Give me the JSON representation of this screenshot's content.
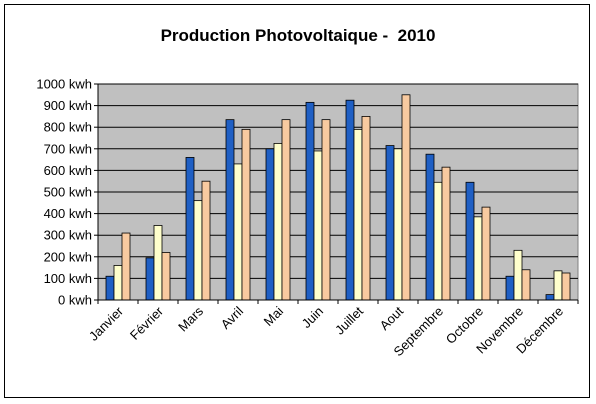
{
  "chart_data": {
    "type": "bar",
    "title": "Production Photovoltaique -  2010",
    "categories": [
      "Janvier",
      "Février",
      "Mars",
      "Avril",
      "Mai",
      "Juin",
      "Juillet",
      "Aout",
      "Septembre",
      "Octobre",
      "Novembre",
      "Décembre"
    ],
    "series": [
      {
        "values": [
          110,
          195,
          660,
          835,
          700,
          915,
          925,
          715,
          675,
          545,
          110,
          25
        ],
        "color": "#1f5fc4"
      },
      {
        "values": [
          160,
          345,
          460,
          630,
          725,
          690,
          790,
          700,
          545,
          385,
          230,
          135
        ],
        "color": "#ffffcc"
      },
      {
        "values": [
          310,
          220,
          550,
          790,
          835,
          835,
          850,
          950,
          615,
          430,
          140,
          125
        ],
        "color": "#f8caa0"
      }
    ],
    "ylim": [
      0,
      1000
    ],
    "yticks": [
      "0 kwh",
      "100 kwh",
      "200 kwh",
      "300 kwh",
      "400 kwh",
      "500 kwh",
      "600 kwh",
      "700 kwh",
      "800 kwh",
      "900 kwh",
      "1000 kwh"
    ],
    "grid": true,
    "legend": "none",
    "plot_background": "#c0c0c0"
  }
}
